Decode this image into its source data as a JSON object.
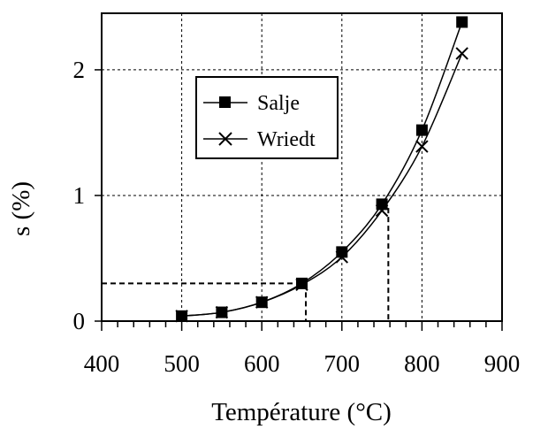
{
  "chart_data": {
    "type": "line",
    "title": "",
    "xlabel": "Température (°C)",
    "ylabel": "s (%)",
    "xlim": [
      400,
      900
    ],
    "ylim": [
      0,
      2.45
    ],
    "xticks": [
      400,
      500,
      600,
      700,
      800,
      900
    ],
    "yticks": [
      0,
      1,
      2
    ],
    "x_tick_labels": [
      "400",
      "500",
      "600",
      "700",
      "800",
      "900"
    ],
    "y_tick_labels": [
      "0",
      "1",
      "2"
    ],
    "grid": true,
    "legend_position": "upper-left",
    "x": [
      500,
      550,
      600,
      650,
      700,
      750,
      800,
      850
    ],
    "series": [
      {
        "name": "Salje",
        "marker": "square",
        "values": [
          0.04,
          0.07,
          0.15,
          0.3,
          0.55,
          0.93,
          1.52,
          2.38
        ]
      },
      {
        "name": "Wriedt",
        "marker": "x",
        "values": [
          0.04,
          0.07,
          0.15,
          0.29,
          0.51,
          0.88,
          1.39,
          2.13
        ]
      }
    ],
    "annotations": [
      {
        "type": "dashed-guide",
        "level": 0.3,
        "from_x": 400,
        "to_x": 655
      },
      {
        "type": "dashed-guide",
        "level": 0.9,
        "from_x": 758,
        "to_x": 758
      }
    ]
  }
}
